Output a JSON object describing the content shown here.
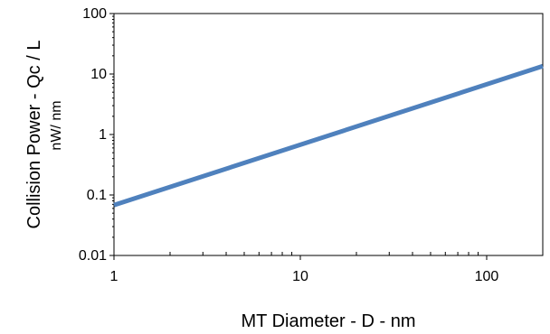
{
  "chart_data": {
    "type": "line",
    "xlabel": "MT Diameter -  D - nm",
    "ylabel_line1": "Collision Power  - Qc / L",
    "ylabel_line2": "nW/ nm",
    "x_scale": "log",
    "y_scale": "log",
    "xlim": [
      1,
      200
    ],
    "ylim": [
      0.01,
      100
    ],
    "x_ticks": [
      {
        "value": 1,
        "label": "1"
      },
      {
        "value": 10,
        "label": "10"
      },
      {
        "value": 100,
        "label": "100"
      }
    ],
    "y_ticks": [
      {
        "value": 0.01,
        "label": "0.01"
      },
      {
        "value": 0.1,
        "label": "0.1"
      },
      {
        "value": 1,
        "label": "1"
      },
      {
        "value": 10,
        "label": "10"
      },
      {
        "value": 100,
        "label": "100"
      }
    ],
    "grid": false,
    "legend": "none",
    "series": [
      {
        "color": "#4f81bd",
        "x": [
          1,
          200
        ],
        "y": [
          0.068,
          13.5
        ]
      }
    ]
  }
}
